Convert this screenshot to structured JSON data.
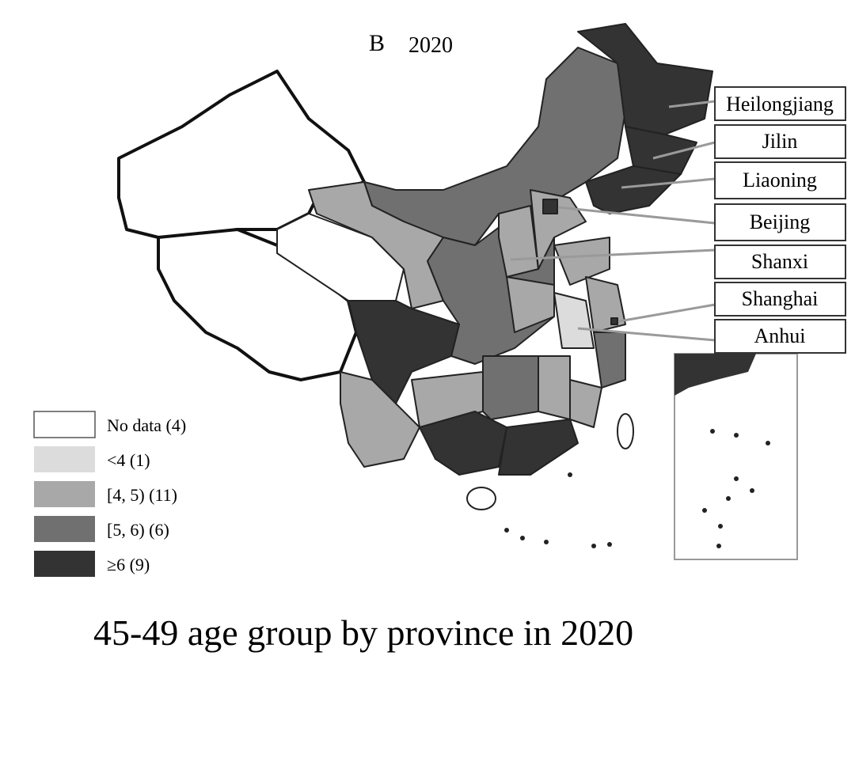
{
  "panel": {
    "label": "B",
    "year": "2020"
  },
  "callouts": [
    "Heilongjiang",
    "Jilin",
    "Liaoning",
    "Beijing",
    "Shanxi",
    "Shanghai",
    "Anhui"
  ],
  "legend": [
    "No data (4)",
    "<4 (1)",
    "[4, 5) (11)",
    "[5, 6) (6)",
    "≥6 (9)"
  ],
  "caption": "45-49 age group by province in 2020"
}
